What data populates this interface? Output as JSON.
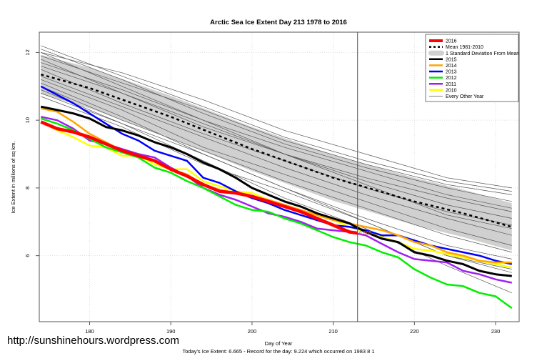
{
  "chart_data": {
    "type": "line",
    "title": "Arctic Sea Ice Extent Day 213 1978 to 2016",
    "xlabel": "Day of Year",
    "ylabel": "Ice Extent in millions of sq km.",
    "subtitle": "Today's Ice Extent: 6.665  - Record for the day: 9.224 which occurred on 1983 8 1",
    "xlim": [
      173.8,
      232.9
    ],
    "ylim": [
      4.05,
      12.6
    ],
    "xticks": [
      180,
      190,
      200,
      210,
      220,
      230
    ],
    "yticks": [
      6,
      8,
      10,
      12
    ],
    "grid": true,
    "legend_position": "top-right",
    "current_day_marker": 213,
    "current_value_label": "6.665",
    "mean": {
      "name": "Mean 1981-2010",
      "color": "#000000",
      "x": [
        174,
        180,
        190,
        200,
        210,
        220,
        226,
        232
      ],
      "values": [
        11.35,
        10.95,
        10.1,
        9.15,
        8.3,
        7.6,
        7.25,
        6.85
      ],
      "sd": [
        0.58,
        0.6,
        0.62,
        0.65,
        0.68,
        0.7,
        0.7,
        0.7
      ]
    },
    "sd_label": "1 Standard Deviation From Mean",
    "sd_color": "#d0d0d0",
    "series": [
      {
        "name": "2016",
        "color": "#ff0000",
        "width": 4.5,
        "x": [
          174,
          176,
          178,
          180,
          182,
          184,
          186,
          188,
          190,
          192,
          194,
          196,
          198,
          200,
          202,
          204,
          206,
          208,
          210,
          212,
          213
        ],
        "values": [
          9.95,
          9.75,
          9.65,
          9.5,
          9.3,
          9.1,
          8.95,
          8.8,
          8.55,
          8.35,
          8.1,
          7.9,
          7.85,
          7.75,
          7.6,
          7.45,
          7.3,
          7.1,
          6.9,
          6.7,
          6.665
        ]
      },
      {
        "name": "2015",
        "color": "#000000",
        "width": 3,
        "x": [
          174,
          176,
          178,
          180,
          182,
          184,
          186,
          188,
          190,
          192,
          194,
          196,
          198,
          200,
          202,
          204,
          206,
          208,
          210,
          212,
          214,
          216,
          218,
          220,
          222,
          224,
          226,
          228,
          230,
          232
        ],
        "values": [
          10.4,
          10.3,
          10.2,
          10.05,
          9.8,
          9.7,
          9.55,
          9.35,
          9.2,
          9.0,
          8.75,
          8.55,
          8.3,
          8.0,
          7.8,
          7.6,
          7.45,
          7.25,
          7.1,
          6.95,
          6.7,
          6.5,
          6.4,
          6.1,
          6.0,
          5.85,
          5.75,
          5.55,
          5.45,
          5.4
        ]
      },
      {
        "name": "2014",
        "color": "#ffa500",
        "width": 2.5,
        "x": [
          174,
          176,
          178,
          180,
          182,
          184,
          186,
          188,
          190,
          192,
          194,
          196,
          198,
          200,
          202,
          204,
          206,
          208,
          210,
          212,
          214,
          216,
          218,
          220,
          222,
          224,
          226,
          228,
          230,
          232
        ],
        "values": [
          10.35,
          10.25,
          9.95,
          9.6,
          9.35,
          9.1,
          8.95,
          8.8,
          8.55,
          8.4,
          8.1,
          7.95,
          7.85,
          7.75,
          7.65,
          7.5,
          7.35,
          7.2,
          7.05,
          6.95,
          6.85,
          6.75,
          6.6,
          6.4,
          6.3,
          6.1,
          6.0,
          5.85,
          5.8,
          5.8
        ]
      },
      {
        "name": "2013",
        "color": "#0000ff",
        "width": 2.5,
        "x": [
          174,
          176,
          178,
          180,
          182,
          184,
          186,
          188,
          190,
          192,
          194,
          196,
          198,
          200,
          202,
          204,
          206,
          208,
          210,
          212,
          214,
          216,
          218,
          220,
          222,
          224,
          226,
          228,
          230,
          232
        ],
        "values": [
          11.0,
          10.75,
          10.5,
          10.2,
          9.9,
          9.6,
          9.4,
          9.1,
          8.95,
          8.8,
          8.3,
          8.15,
          7.9,
          7.7,
          7.55,
          7.35,
          7.2,
          7.05,
          6.9,
          6.85,
          6.75,
          6.6,
          6.6,
          6.45,
          6.3,
          6.2,
          6.1,
          6.0,
          5.85,
          5.75
        ]
      },
      {
        "name": "2012",
        "color": "#00ee00",
        "width": 2.5,
        "x": [
          174,
          176,
          178,
          180,
          182,
          184,
          186,
          188,
          190,
          192,
          194,
          196,
          198,
          200,
          202,
          204,
          206,
          208,
          210,
          212,
          214,
          216,
          218,
          220,
          222,
          224,
          226,
          228,
          230,
          232
        ],
        "values": [
          10.05,
          9.9,
          9.7,
          9.45,
          9.2,
          9.05,
          8.9,
          8.6,
          8.45,
          8.2,
          8.0,
          7.75,
          7.5,
          7.35,
          7.3,
          7.1,
          6.95,
          6.75,
          6.55,
          6.4,
          6.3,
          6.1,
          5.95,
          5.6,
          5.35,
          5.15,
          5.1,
          4.9,
          4.8,
          4.45
        ]
      },
      {
        "name": "2011",
        "color": "#a020f0",
        "width": 2.5,
        "x": [
          174,
          176,
          178,
          180,
          182,
          184,
          186,
          188,
          190,
          192,
          194,
          196,
          198,
          200,
          202,
          204,
          206,
          208,
          210,
          212,
          214,
          216,
          218,
          220,
          222,
          224,
          226,
          228,
          230,
          232
        ],
        "values": [
          10.1,
          10.0,
          9.75,
          9.4,
          9.3,
          9.15,
          9.0,
          8.9,
          8.6,
          8.35,
          8.0,
          7.8,
          7.65,
          7.45,
          7.25,
          7.15,
          7.0,
          6.8,
          6.75,
          6.7,
          6.6,
          6.35,
          6.1,
          5.9,
          5.85,
          5.8,
          5.55,
          5.45,
          5.3,
          5.2
        ]
      },
      {
        "name": "2010",
        "color": "#ffff00",
        "width": 2.5,
        "x": [
          174,
          176,
          178,
          180,
          182,
          184,
          186,
          188,
          190,
          192,
          194,
          196,
          198,
          200,
          202,
          204,
          206,
          208,
          210,
          212,
          214,
          216,
          218,
          220,
          222,
          224,
          226,
          228,
          230,
          232
        ],
        "values": [
          9.95,
          9.7,
          9.5,
          9.25,
          9.2,
          8.95,
          8.95,
          8.7,
          8.55,
          8.55,
          8.2,
          8.05,
          7.9,
          7.85,
          7.65,
          7.45,
          7.3,
          7.2,
          7.05,
          6.85,
          6.7,
          6.55,
          6.4,
          6.2,
          6.15,
          6.05,
          5.95,
          5.85,
          5.75,
          5.65
        ]
      }
    ],
    "other_years": {
      "name": "Every Other Year",
      "color": "#555555",
      "x": [
        174,
        184,
        194,
        204,
        214,
        224,
        232
      ],
      "lines": [
        [
          12.2,
          11.3,
          10.4,
          9.5,
          8.8,
          8.2,
          7.9
        ],
        [
          12.1,
          11.2,
          10.2,
          9.3,
          8.6,
          8.0,
          7.6
        ],
        [
          12.0,
          11.0,
          10.0,
          9.2,
          8.5,
          7.8,
          7.4
        ],
        [
          11.9,
          11.1,
          10.3,
          9.4,
          8.7,
          8.1,
          7.8
        ],
        [
          11.8,
          10.8,
          9.8,
          9.0,
          8.2,
          7.5,
          7.1
        ],
        [
          11.6,
          10.8,
          9.9,
          9.0,
          8.3,
          7.7,
          7.3
        ],
        [
          11.5,
          10.5,
          9.6,
          8.8,
          8.0,
          7.3,
          6.9
        ],
        [
          11.3,
          10.4,
          9.5,
          8.6,
          7.8,
          7.1,
          6.6
        ],
        [
          11.2,
          10.3,
          9.2,
          8.4,
          7.6,
          6.8,
          6.3
        ],
        [
          11.0,
          10.0,
          9.1,
          8.2,
          7.4,
          6.6,
          6.1
        ],
        [
          10.8,
          9.9,
          9.0,
          8.0,
          7.1,
          6.3,
          5.9
        ],
        [
          10.7,
          9.8,
          8.7,
          7.9,
          7.0,
          6.0,
          5.5
        ],
        [
          12.0,
          11.4,
          10.6,
          9.7,
          9.0,
          8.3,
          8.0
        ],
        [
          11.7,
          10.9,
          10.0,
          9.0,
          8.1,
          7.2,
          6.8
        ],
        [
          10.9,
          9.9,
          8.8,
          7.7,
          6.8,
          5.7,
          4.9
        ],
        [
          11.1,
          10.1,
          9.0,
          8.0,
          7.0,
          6.0,
          5.6
        ]
      ]
    }
  },
  "watermark": "http://sunshinehours.wordpress.com"
}
